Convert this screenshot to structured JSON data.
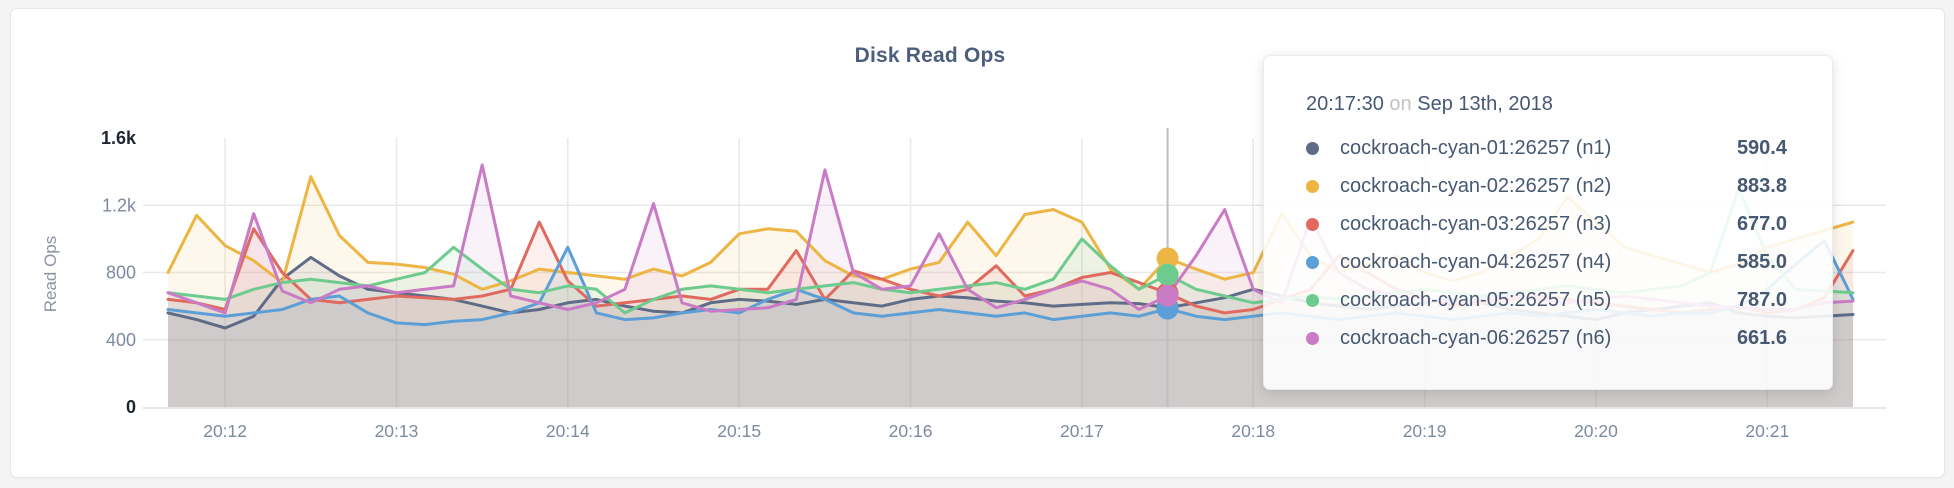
{
  "panel": {
    "title": "Disk Read Ops"
  },
  "colors": {
    "title_text": "#4c5e7f",
    "axis_tick": "#7e8aa0",
    "axis_tick_emphasis": "#1d2532",
    "gridline": "#e9e9e9",
    "baseline": "#dedede",
    "crosshair": "#b9bfc6",
    "tooltip_text": "#475872"
  },
  "chart_data": {
    "type": "line",
    "title": "Disk Read Ops",
    "xlabel": "",
    "ylabel": "Read Ops",
    "ylim": [
      0,
      1600
    ],
    "grid": true,
    "legend_position": "tooltip",
    "x_start_time": "20:11:40",
    "x_interval_seconds": 10,
    "x_ticks": [
      {
        "label": "20:12",
        "index": 2
      },
      {
        "label": "20:13",
        "index": 8
      },
      {
        "label": "20:14",
        "index": 14
      },
      {
        "label": "20:15",
        "index": 20
      },
      {
        "label": "20:16",
        "index": 26
      },
      {
        "label": "20:17",
        "index": 32
      },
      {
        "label": "20:18",
        "index": 38
      },
      {
        "label": "20:19",
        "index": 44
      },
      {
        "label": "20:20",
        "index": 50
      },
      {
        "label": "20:21",
        "index": 56
      }
    ],
    "y_ticks": [
      {
        "label": "0",
        "value": 0,
        "emphasis": true
      },
      {
        "label": "400",
        "value": 400,
        "emphasis": false
      },
      {
        "label": "800",
        "value": 800,
        "emphasis": false
      },
      {
        "label": "1.2k",
        "value": 1200,
        "emphasis": false
      },
      {
        "label": "1.6k",
        "value": 1600,
        "emphasis": true
      }
    ],
    "series": [
      {
        "name": "cockroach-cyan-01:26257 (n1)",
        "color": "#5F6C87",
        "values": [
          560,
          520,
          470,
          540,
          760,
          890,
          780,
          700,
          680,
          660,
          640,
          600,
          560,
          580,
          620,
          640,
          600,
          570,
          560,
          620,
          640,
          630,
          610,
          640,
          620,
          600,
          640,
          660,
          650,
          630,
          620,
          600,
          610,
          620,
          615,
          590.4,
          620,
          650,
          700,
          660,
          620,
          600,
          580,
          600,
          620,
          640,
          620,
          580,
          560,
          540,
          520,
          560,
          580,
          600,
          620,
          560,
          540,
          530,
          540,
          550
        ]
      },
      {
        "name": "cockroach-cyan-02:26257 (n2)",
        "color": "#EDB544",
        "values": [
          800,
          1140,
          960,
          870,
          740,
          1370,
          1020,
          860,
          850,
          830,
          790,
          700,
          750,
          820,
          800,
          780,
          760,
          820,
          780,
          860,
          1030,
          1060,
          1045,
          870,
          780,
          760,
          820,
          860,
          1100,
          900,
          1145,
          1175,
          1100,
          820,
          700,
          883.8,
          820,
          760,
          800,
          1150,
          900,
          800,
          850,
          900,
          800,
          750,
          800,
          900,
          1000,
          1250,
          1100,
          950,
          900,
          850,
          800,
          850,
          950,
          1000,
          1050,
          1100
        ]
      },
      {
        "name": "cockroach-cyan-03:26257 (n3)",
        "color": "#E06A5F",
        "values": [
          640,
          620,
          580,
          1060,
          800,
          640,
          620,
          640,
          660,
          650,
          640,
          660,
          700,
          1100,
          750,
          600,
          620,
          640,
          660,
          640,
          700,
          700,
          930,
          640,
          810,
          760,
          700,
          660,
          700,
          840,
          660,
          700,
          770,
          800,
          740,
          677,
          600,
          560,
          580,
          640,
          700,
          900,
          800,
          700,
          650,
          600,
          620,
          640,
          660,
          640,
          620,
          600,
          580,
          560,
          580,
          600,
          560,
          580,
          650,
          930
        ]
      },
      {
        "name": "cockroach-cyan-04:26257 (n4)",
        "color": "#5C9FD6",
        "values": [
          580,
          560,
          540,
          560,
          580,
          640,
          660,
          560,
          500,
          490,
          510,
          520,
          560,
          620,
          950,
          560,
          520,
          530,
          560,
          580,
          560,
          640,
          700,
          640,
          560,
          540,
          560,
          580,
          560,
          540,
          560,
          520,
          540,
          560,
          540,
          585,
          540,
          520,
          540,
          560,
          540,
          520,
          540,
          560,
          540,
          520,
          540,
          560,
          540,
          560,
          580,
          560,
          540,
          560,
          560,
          600,
          700,
          850,
          990,
          640
        ]
      },
      {
        "name": "cockroach-cyan-05:26257 (n5)",
        "color": "#6ECB8E",
        "values": [
          680,
          660,
          640,
          700,
          740,
          760,
          740,
          720,
          760,
          800,
          950,
          820,
          700,
          680,
          720,
          700,
          560,
          640,
          700,
          720,
          700,
          680,
          700,
          720,
          740,
          700,
          680,
          700,
          720,
          740,
          700,
          760,
          1000,
          840,
          700,
          787,
          700,
          660,
          620,
          640,
          660,
          640,
          660,
          680,
          700,
          680,
          660,
          680,
          700,
          720,
          700,
          680,
          700,
          720,
          800,
          1300,
          900,
          700,
          690,
          680
        ]
      },
      {
        "name": "cockroach-cyan-06:26257 (n6)",
        "color": "#C97BC5",
        "values": [
          680,
          620,
          560,
          1150,
          690,
          620,
          700,
          720,
          680,
          700,
          720,
          1440,
          660,
          620,
          580,
          620,
          700,
          1210,
          620,
          570,
          580,
          590,
          640,
          1410,
          800,
          700,
          720,
          1030,
          700,
          590,
          640,
          700,
          750,
          700,
          580,
          661.6,
          900,
          1175,
          700,
          620,
          1120,
          800,
          700,
          660,
          640,
          620,
          640,
          660,
          640,
          620,
          640,
          660,
          640,
          620,
          600,
          590,
          580,
          580,
          620,
          630
        ]
      }
    ]
  },
  "tooltip": {
    "time": "20:17:30",
    "on_word": "on",
    "date": "Sep 13th, 2018",
    "hover_index": 35,
    "rows": [
      {
        "name": "cockroach-cyan-01:26257 (n1)",
        "value": "590.4"
      },
      {
        "name": "cockroach-cyan-02:26257 (n2)",
        "value": "883.8"
      },
      {
        "name": "cockroach-cyan-03:26257 (n3)",
        "value": "677.0"
      },
      {
        "name": "cockroach-cyan-04:26257 (n4)",
        "value": "585.0"
      },
      {
        "name": "cockroach-cyan-05:26257 (n5)",
        "value": "787.0"
      },
      {
        "name": "cockroach-cyan-06:26257 (n6)",
        "value": "661.6"
      }
    ]
  }
}
